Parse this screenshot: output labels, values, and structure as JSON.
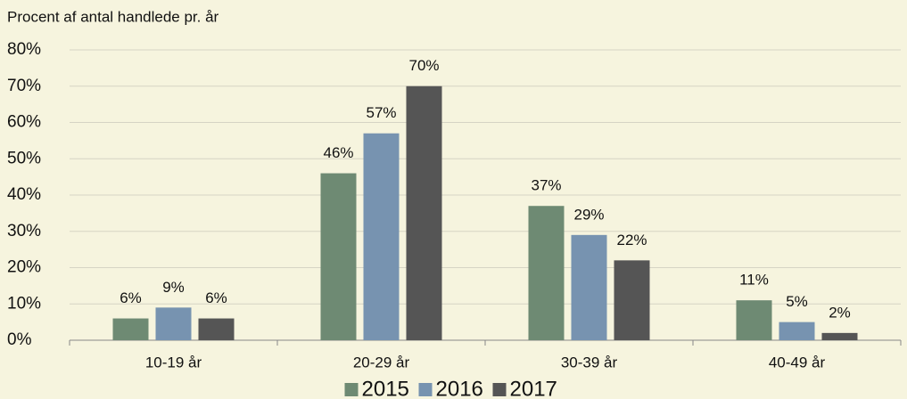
{
  "chart_data": {
    "type": "bar",
    "y_axis_label": "Procent af antal handlede pr. år",
    "categories": [
      "10-19 år",
      "20-29 år",
      "30-39 år",
      "40-49 år"
    ],
    "series": [
      {
        "name": "2015",
        "color": "#6e8a73",
        "values": [
          6,
          46,
          37,
          11
        ],
        "value_labels": [
          "6%",
          "46%",
          "37%",
          "11%"
        ]
      },
      {
        "name": "2016",
        "color": "#7793b0",
        "values": [
          9,
          57,
          29,
          5
        ],
        "value_labels": [
          "9%",
          "57%",
          "29%",
          "5%"
        ]
      },
      {
        "name": "2017",
        "color": "#555555",
        "values": [
          6,
          70,
          22,
          2
        ],
        "value_labels": [
          "6%",
          "70%",
          "22%",
          "2%"
        ]
      }
    ],
    "ylim": [
      0,
      80
    ],
    "yticks": [
      {
        "value": 0,
        "label": "0%"
      },
      {
        "value": 10,
        "label": "10%"
      },
      {
        "value": 20,
        "label": "20%"
      },
      {
        "value": 30,
        "label": "30%"
      },
      {
        "value": 40,
        "label": "40%"
      },
      {
        "value": 50,
        "label": "50%"
      },
      {
        "value": 60,
        "label": "60%"
      },
      {
        "value": 70,
        "label": "70%"
      },
      {
        "value": 80,
        "label": "80%"
      }
    ],
    "grid": true,
    "legend": "bottom"
  }
}
